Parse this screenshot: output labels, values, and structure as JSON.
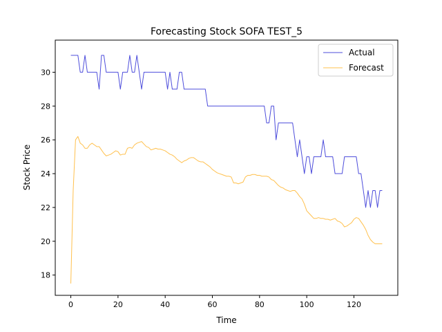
{
  "chart_data": {
    "type": "line",
    "title": "Forecasting Stock SOFA TEST_5",
    "xlabel": "Time",
    "ylabel": "Stock Price",
    "xlim": [
      -6.6,
      138.6
    ],
    "ylim": [
      16.8,
      31.9
    ],
    "x_ticks": [
      0,
      20,
      40,
      60,
      80,
      100,
      120
    ],
    "y_ticks": [
      18,
      20,
      22,
      24,
      26,
      28,
      30
    ],
    "grid": false,
    "legend": {
      "position": "top-right"
    },
    "series": [
      {
        "name": "Actual",
        "color": "#0000cc",
        "points": [
          [
            0,
            31
          ],
          [
            3,
            31
          ],
          [
            4,
            30
          ],
          [
            5,
            30
          ],
          [
            6,
            31
          ],
          [
            7,
            30
          ],
          [
            11,
            30
          ],
          [
            12,
            29
          ],
          [
            13,
            31
          ],
          [
            14,
            31
          ],
          [
            15,
            30
          ],
          [
            20,
            30
          ],
          [
            21,
            29
          ],
          [
            22,
            30
          ],
          [
            24,
            30
          ],
          [
            25,
            31
          ],
          [
            26,
            30
          ],
          [
            27,
            30
          ],
          [
            28,
            31
          ],
          [
            30,
            29
          ],
          [
            31,
            30
          ],
          [
            40,
            30
          ],
          [
            41,
            29
          ],
          [
            42,
            30
          ],
          [
            43,
            29
          ],
          [
            45,
            29
          ],
          [
            46,
            30
          ],
          [
            47,
            30
          ],
          [
            48,
            29
          ],
          [
            57,
            29
          ],
          [
            58,
            28
          ],
          [
            82,
            28
          ],
          [
            83,
            27
          ],
          [
            84,
            27
          ],
          [
            85,
            28
          ],
          [
            86,
            28
          ],
          [
            87,
            26
          ],
          [
            88,
            27
          ],
          [
            94,
            27
          ],
          [
            95,
            26
          ],
          [
            96,
            25
          ],
          [
            97,
            26
          ],
          [
            98,
            25
          ],
          [
            99,
            24
          ],
          [
            100,
            25
          ],
          [
            101,
            25
          ],
          [
            102,
            24
          ],
          [
            103,
            25
          ],
          [
            106,
            25
          ],
          [
            107,
            26
          ],
          [
            108,
            25
          ],
          [
            111,
            25
          ],
          [
            112,
            24
          ],
          [
            115,
            24
          ],
          [
            116,
            25
          ],
          [
            121,
            25
          ],
          [
            122,
            24
          ],
          [
            123,
            24
          ],
          [
            124,
            23
          ],
          [
            125,
            22
          ],
          [
            126,
            23
          ],
          [
            127,
            22
          ],
          [
            128,
            23
          ],
          [
            129,
            23
          ],
          [
            130,
            22
          ],
          [
            131,
            23
          ],
          [
            132,
            23
          ]
        ]
      },
      {
        "name": "Forecast",
        "color": "#ffa500",
        "points": [
          [
            0,
            17.5
          ],
          [
            1,
            23
          ],
          [
            2,
            26
          ],
          [
            3,
            26.2
          ],
          [
            4,
            25.8
          ],
          [
            5,
            25.7
          ],
          [
            6,
            25.5
          ],
          [
            7,
            25.5
          ],
          [
            8,
            25.7
          ],
          [
            9,
            25.8
          ],
          [
            10,
            25.7
          ],
          [
            11,
            25.6
          ],
          [
            12,
            25.6
          ],
          [
            13,
            25.4
          ],
          [
            14,
            25.2
          ],
          [
            15,
            25.05
          ],
          [
            16,
            25.1
          ],
          [
            17,
            25.15
          ],
          [
            18,
            25.25
          ],
          [
            19,
            25.35
          ],
          [
            20,
            25.3
          ],
          [
            21,
            25.1
          ],
          [
            22,
            25.15
          ],
          [
            23,
            25.15
          ],
          [
            24,
            25.5
          ],
          [
            25,
            25.55
          ],
          [
            26,
            25.5
          ],
          [
            27,
            25.7
          ],
          [
            28,
            25.8
          ],
          [
            29,
            25.85
          ],
          [
            30,
            25.9
          ],
          [
            31,
            25.75
          ],
          [
            32,
            25.6
          ],
          [
            33,
            25.55
          ],
          [
            34,
            25.4
          ],
          [
            35,
            25.45
          ],
          [
            36,
            25.5
          ],
          [
            37,
            25.45
          ],
          [
            38,
            25.45
          ],
          [
            39,
            25.4
          ],
          [
            40,
            25.35
          ],
          [
            41,
            25.25
          ],
          [
            42,
            25.15
          ],
          [
            43,
            25.1
          ],
          [
            44,
            25
          ],
          [
            45,
            24.85
          ],
          [
            46,
            24.75
          ],
          [
            47,
            24.65
          ],
          [
            48,
            24.75
          ],
          [
            49,
            24.8
          ],
          [
            50,
            24.9
          ],
          [
            51,
            24.95
          ],
          [
            52,
            24.95
          ],
          [
            53,
            24.85
          ],
          [
            54,
            24.75
          ],
          [
            55,
            24.7
          ],
          [
            56,
            24.7
          ],
          [
            57,
            24.6
          ],
          [
            58,
            24.5
          ],
          [
            59,
            24.4
          ],
          [
            60,
            24.25
          ],
          [
            61,
            24.15
          ],
          [
            62,
            24.05
          ],
          [
            63,
            24
          ],
          [
            64,
            23.95
          ],
          [
            65,
            23.9
          ],
          [
            66,
            23.85
          ],
          [
            67,
            23.85
          ],
          [
            68,
            23.8
          ],
          [
            69,
            23.45
          ],
          [
            70,
            23.45
          ],
          [
            71,
            23.4
          ],
          [
            72,
            23.45
          ],
          [
            73,
            23.5
          ],
          [
            74,
            23.8
          ],
          [
            75,
            23.9
          ],
          [
            76,
            23.9
          ],
          [
            77,
            23.95
          ],
          [
            78,
            23.95
          ],
          [
            79,
            23.9
          ],
          [
            80,
            23.9
          ],
          [
            81,
            23.85
          ],
          [
            82,
            23.85
          ],
          [
            83,
            23.85
          ],
          [
            84,
            23.8
          ],
          [
            85,
            23.65
          ],
          [
            86,
            23.6
          ],
          [
            87,
            23.45
          ],
          [
            88,
            23.3
          ],
          [
            89,
            23.2
          ],
          [
            90,
            23.15
          ],
          [
            91,
            23.05
          ],
          [
            92,
            23
          ],
          [
            93,
            22.95
          ],
          [
            94,
            23
          ],
          [
            95,
            23
          ],
          [
            96,
            22.85
          ],
          [
            97,
            22.65
          ],
          [
            98,
            22.5
          ],
          [
            99,
            22.2
          ],
          [
            100,
            21.8
          ],
          [
            101,
            21.65
          ],
          [
            102,
            21.5
          ],
          [
            103,
            21.35
          ],
          [
            104,
            21.35
          ],
          [
            105,
            21.4
          ],
          [
            106,
            21.35
          ],
          [
            107,
            21.35
          ],
          [
            108,
            21.3
          ],
          [
            109,
            21.3
          ],
          [
            110,
            21.25
          ],
          [
            111,
            21.3
          ],
          [
            112,
            21.35
          ],
          [
            113,
            21.2
          ],
          [
            114,
            21.15
          ],
          [
            115,
            21.05
          ],
          [
            116,
            20.85
          ],
          [
            117,
            20.9
          ],
          [
            118,
            21
          ],
          [
            119,
            21.1
          ],
          [
            120,
            21.3
          ],
          [
            121,
            21.4
          ],
          [
            122,
            21.35
          ],
          [
            123,
            21.15
          ],
          [
            124,
            20.95
          ],
          [
            125,
            20.7
          ],
          [
            126,
            20.35
          ],
          [
            127,
            20.1
          ],
          [
            128,
            19.95
          ],
          [
            129,
            19.85
          ],
          [
            130,
            19.85
          ],
          [
            131,
            19.85
          ],
          [
            132,
            19.85
          ]
        ]
      }
    ]
  }
}
